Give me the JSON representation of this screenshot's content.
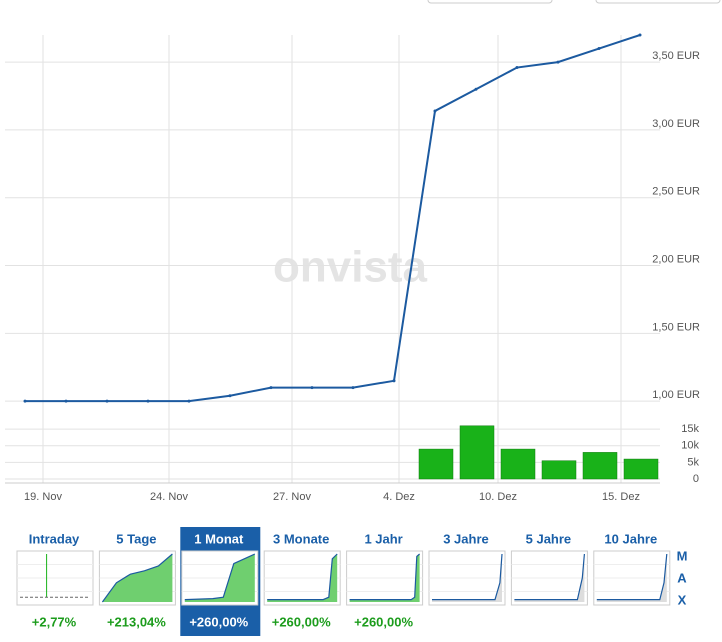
{
  "chart_data": [
    {
      "type": "line",
      "color": "#1c5aa0",
      "values": [
        1.0,
        1.0,
        1.0,
        1.0,
        1.0,
        1.04,
        1.1,
        1.1,
        1.1,
        1.15,
        3.14,
        3.3,
        3.46,
        3.5,
        3.6,
        3.7
      ],
      "ylim": [
        0.92,
        3.7
      ],
      "yticks": [
        {
          "value": 1.0,
          "label": "1,00 EUR"
        },
        {
          "value": 1.5,
          "label": "1,50 EUR"
        },
        {
          "value": 2.0,
          "label": "2,00 EUR"
        },
        {
          "value": 2.5,
          "label": "2,50 EUR"
        },
        {
          "value": 3.0,
          "label": "3,00 EUR"
        },
        {
          "value": 3.5,
          "label": "3,50 EUR"
        }
      ],
      "xtick_labels": [
        "19. Nov",
        "24. Nov",
        "27. Nov",
        "4. Dez",
        "10. Dez",
        "15. Dez"
      ],
      "grid": true
    },
    {
      "type": "bar",
      "color": "#19b219",
      "values": [
        null,
        null,
        null,
        null,
        null,
        null,
        null,
        null,
        null,
        null,
        9000,
        16000,
        9000,
        5500,
        8000,
        6000
      ],
      "ylim": [
        0,
        20000
      ],
      "yticks": [
        0,
        {
          "value": 5000,
          "label": "5k"
        },
        {
          "value": 10000,
          "label": "10k"
        },
        {
          "value": 15000,
          "label": "15k"
        }
      ],
      "grid": true
    }
  ],
  "watermark": "onvista",
  "periods": [
    {
      "label": "Intraday",
      "change": "+2,77%"
    },
    {
      "label": "5 Tage",
      "change": "+213,04%"
    },
    {
      "label": "1 Monat",
      "change": "+260,00%",
      "active": true
    },
    {
      "label": "3 Monate",
      "change": "+260,00%"
    },
    {
      "label": "1 Jahr",
      "change": "+260,00%"
    },
    {
      "label": "3 Jahre"
    },
    {
      "label": "5 Jahre"
    },
    {
      "label": "10 Jahre"
    }
  ],
  "max_label": [
    "M",
    "A",
    "X"
  ]
}
